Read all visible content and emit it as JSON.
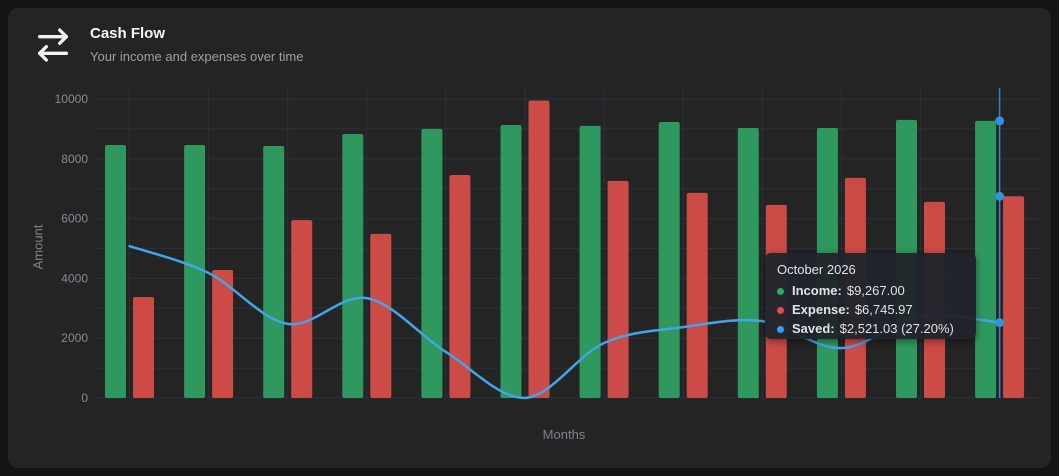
{
  "header": {
    "title": "Cash Flow",
    "subtitle": "Your income and expenses over time",
    "icon": "arrow-right-left"
  },
  "colors": {
    "income_bar": "#2f985f",
    "expense_bar": "#cd4b46",
    "saved_line": "#42a5e8",
    "hover_indicator": "#3f7ec6",
    "hover_point": "#2f93de",
    "gridline": "#2b3040",
    "tick_text": "#868c95"
  },
  "chart_data": {
    "type": "bar",
    "title": "Cash Flow",
    "xlabel": "Months",
    "ylabel": "Amount",
    "ylim": [
      0,
      10000
    ],
    "y_ticks": [
      0,
      2000,
      4000,
      6000,
      8000,
      10000
    ],
    "grid": true,
    "legend_position": "none",
    "x_tick_labels_visible": false,
    "categories": [
      "1",
      "2",
      "3",
      "4",
      "5",
      "6",
      "7",
      "8",
      "9",
      "10",
      "11",
      "12"
    ],
    "series": [
      {
        "name": "Income",
        "type": "bar",
        "color": "#2f985f",
        "values": [
          8460,
          8460,
          8430,
          8830,
          9000,
          9130,
          9100,
          9230,
          9030,
          9030,
          9300,
          9267
        ]
      },
      {
        "name": "Expense",
        "type": "bar",
        "color": "#cd4b46",
        "values": [
          3380,
          4280,
          5950,
          5490,
          7460,
          9950,
          7260,
          6860,
          6460,
          7360,
          6560,
          6745.97
        ]
      },
      {
        "name": "Saved",
        "type": "line",
        "color": "#42a5e8",
        "values": [
          5080,
          4180,
          2480,
          3340,
          1540,
          -800,
          1840,
          2370,
          2570,
          1670,
          2740,
          2521.03
        ]
      }
    ],
    "hovered_index": 11,
    "hovered_label": "October 2026"
  },
  "tooltip": {
    "title": "October 2026",
    "rows": [
      {
        "label": "Income:",
        "value": "$9,267.00",
        "color": "#2eae5b"
      },
      {
        "label": "Expense:",
        "value": "$6,745.97",
        "color": "#e24c4c"
      },
      {
        "label": "Saved:",
        "value": "$2,521.03 (27.20%)",
        "color": "#2ba3f7"
      }
    ]
  }
}
